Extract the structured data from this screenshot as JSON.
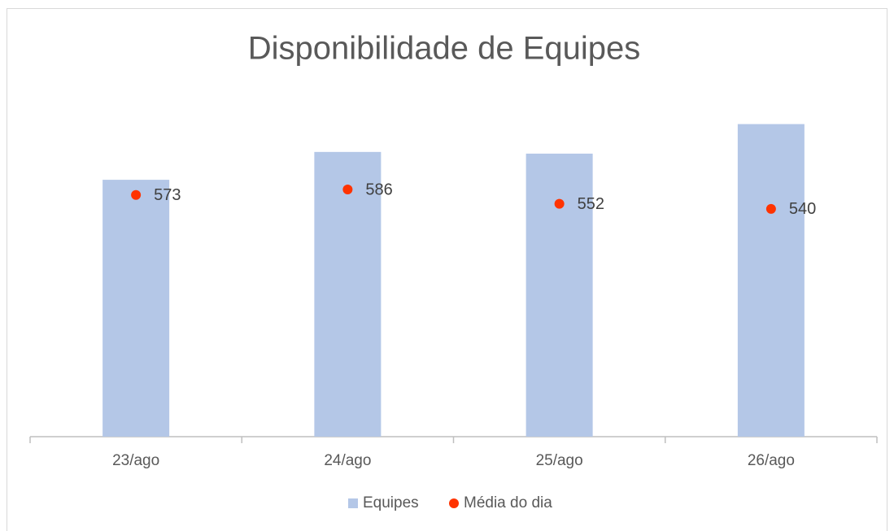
{
  "chart_data": {
    "type": "bar",
    "title": "Disponibilidade de Equipes",
    "categories": [
      "23/ago",
      "24/ago",
      "25/ago",
      "26/ago"
    ],
    "series": [
      {
        "name": "Equipes",
        "type": "bar",
        "color": "#b4c7e7",
        "values": [
          609,
          675,
          671,
          741
        ]
      },
      {
        "name": "Média do dia",
        "type": "scatter",
        "color": "#ff3300",
        "values": [
          573,
          586,
          552,
          540
        ],
        "data_labels": true
      }
    ],
    "ylim": [
      0,
      800
    ],
    "legend": "bottom"
  }
}
